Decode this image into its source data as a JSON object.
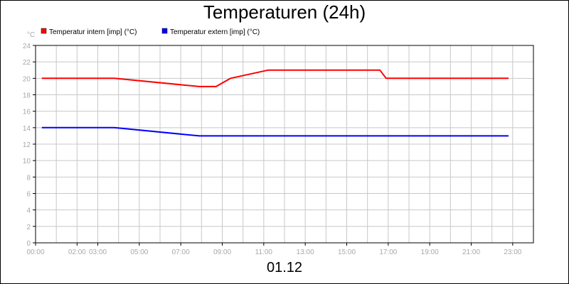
{
  "chart_data": {
    "type": "line",
    "title": "Temperaturen (24h)",
    "ylabel": "°C",
    "xlabel": "01.12",
    "ylim": [
      0,
      24
    ],
    "xlim": [
      0,
      24
    ],
    "yticks": [
      0,
      2,
      4,
      6,
      8,
      10,
      12,
      14,
      16,
      18,
      20,
      22,
      24
    ],
    "xticks": [
      {
        "v": 0,
        "label": "00:00"
      },
      {
        "v": 2,
        "label": "02:00"
      },
      {
        "v": 3,
        "label": "03:00"
      },
      {
        "v": 5,
        "label": "05:00"
      },
      {
        "v": 7,
        "label": "07:00"
      },
      {
        "v": 9,
        "label": "09:00"
      },
      {
        "v": 11,
        "label": "11:00"
      },
      {
        "v": 13,
        "label": "13:00"
      },
      {
        "v": 15,
        "label": "15:00"
      },
      {
        "v": 17,
        "label": "17:00"
      },
      {
        "v": 19,
        "label": "19:00"
      },
      {
        "v": 21,
        "label": "21:00"
      },
      {
        "v": 23,
        "label": "23:00"
      }
    ],
    "grid": true,
    "legend": "top-left",
    "series": [
      {
        "name": "Temperatur intern [imp] (°C)",
        "color": "#ff0000",
        "points": [
          [
            0.3,
            20
          ],
          [
            3.8,
            20
          ],
          [
            7.9,
            19
          ],
          [
            8.7,
            19
          ],
          [
            9.4,
            20
          ],
          [
            11.2,
            21
          ],
          [
            16.6,
            21
          ],
          [
            16.9,
            20
          ],
          [
            22.8,
            20
          ]
        ]
      },
      {
        "name": "Temperatur extern [imp] (°C)",
        "color": "#0000ff",
        "points": [
          [
            0.3,
            14
          ],
          [
            3.8,
            14
          ],
          [
            7.9,
            13
          ],
          [
            22.8,
            13
          ]
        ]
      }
    ]
  }
}
